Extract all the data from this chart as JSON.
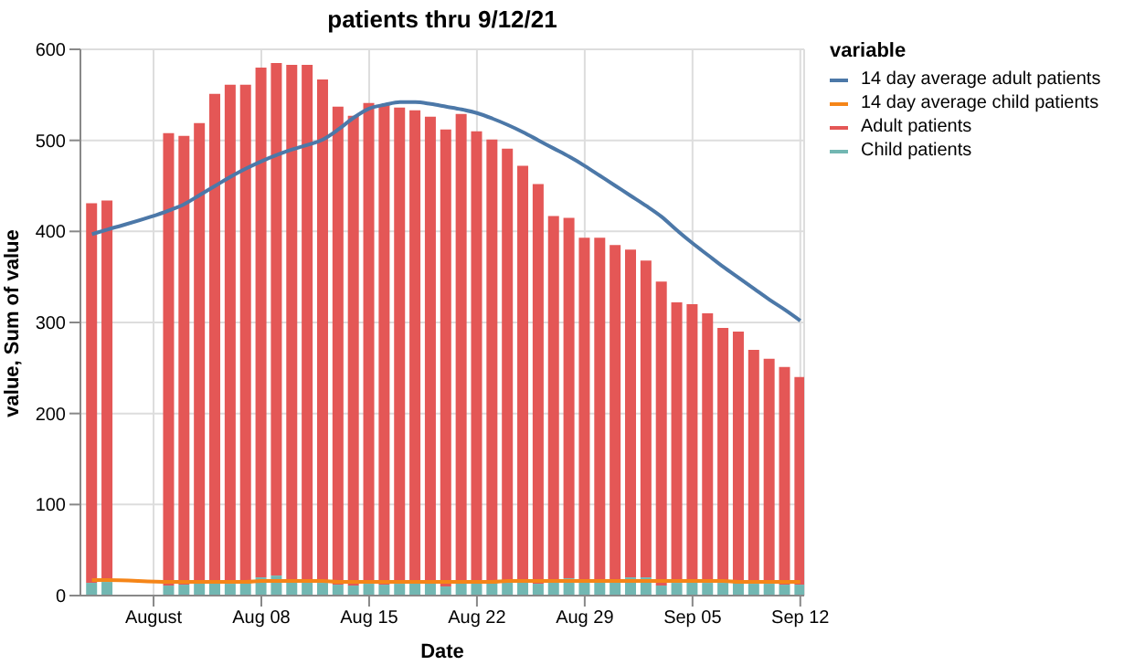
{
  "chart_data": {
    "type": "bar",
    "title": "patients thru 9/12/21",
    "xlabel": "Date",
    "ylabel": "value, Sum of value",
    "legend_title": "variable",
    "x": [
      "--07-28",
      "--07-29",
      "--08-02",
      "--08-03",
      "--08-04",
      "--08-05",
      "--08-06",
      "--08-07",
      "--08-08",
      "--08-09",
      "--08-10",
      "--08-11",
      "--08-12",
      "--08-13",
      "--08-14",
      "--08-15",
      "--08-16",
      "--08-17",
      "--08-18",
      "--08-19",
      "--08-20",
      "--08-21",
      "--08-22",
      "--08-23",
      "--08-24",
      "--08-25",
      "--08-26",
      "--08-27",
      "--08-28",
      "--08-29",
      "--08-30",
      "--08-31",
      "--09-01",
      "--09-02",
      "--09-03",
      "--09-04",
      "--09-05",
      "--09-06",
      "--09-07",
      "--09-08",
      "--09-09",
      "--09-10",
      "--09-11",
      "--09-12"
    ],
    "series": [
      {
        "name": "14 day average adult patients",
        "type": "line",
        "color": "#4c78a8",
        "values": [
          397,
          402,
          423,
          430,
          440,
          450,
          460,
          469,
          477,
          484,
          490,
          495,
          501,
          512,
          525,
          535,
          539,
          542,
          542,
          540,
          537,
          534,
          530,
          524,
          517,
          509,
          500,
          491,
          482,
          472,
          461,
          450,
          439,
          428,
          416,
          401,
          387,
          374,
          361,
          349,
          337,
          325,
          314,
          302
        ]
      },
      {
        "name": "14 day average child patients",
        "type": "line",
        "color": "#f58518",
        "values": [
          17,
          17,
          15,
          15,
          15,
          15,
          15,
          15,
          16,
          16,
          16,
          16,
          16,
          15,
          15,
          15,
          15,
          15,
          15,
          15,
          15,
          15,
          15,
          15,
          16,
          16,
          16,
          16,
          16,
          16,
          16,
          16,
          16,
          16,
          16,
          16,
          16,
          16,
          16,
          15,
          15,
          15,
          15,
          15
        ]
      },
      {
        "name": "Child patients",
        "type": "bar",
        "color": "#72b7b2",
        "values": [
          14,
          15,
          11,
          12,
          14,
          16,
          13,
          14,
          20,
          22,
          16,
          16,
          14,
          12,
          11,
          13,
          12,
          13,
          16,
          16,
          10,
          14,
          16,
          14,
          17,
          17,
          13,
          16,
          19,
          18,
          17,
          16,
          20,
          20,
          11,
          14,
          18,
          14,
          14,
          15,
          13,
          13,
          12,
          12
        ]
      },
      {
        "name": "Adult patients",
        "type": "bar",
        "color": "#e45756",
        "values": [
          417,
          419,
          497,
          493,
          505,
          535,
          548,
          547,
          560,
          563,
          567,
          567,
          553,
          525,
          516,
          528,
          527,
          523,
          517,
          510,
          502,
          515,
          494,
          487,
          474,
          455,
          439,
          401,
          396,
          375,
          376,
          369,
          360,
          348,
          334,
          308,
          302,
          296,
          280,
          275,
          257,
          247,
          239,
          228
        ]
      }
    ],
    "stacked": true,
    "xlim": [
      "--07-27T06:00",
      "--09-12T06:00"
    ],
    "xticks": [
      {
        "value": "--08-01",
        "label": "August"
      },
      {
        "value": "--08-08",
        "label": "Aug 08"
      },
      {
        "value": "--08-15",
        "label": "Aug 15"
      },
      {
        "value": "--08-22",
        "label": "Aug 22"
      },
      {
        "value": "--08-29",
        "label": "Aug 29"
      },
      {
        "value": "--09-05",
        "label": "Sep 05"
      },
      {
        "value": "--09-12",
        "label": "Sep 12"
      }
    ],
    "ylim": [
      0,
      600
    ],
    "yticks": [
      0,
      100,
      200,
      300,
      400,
      500,
      600
    ],
    "grid": true,
    "legend": "top right"
  }
}
